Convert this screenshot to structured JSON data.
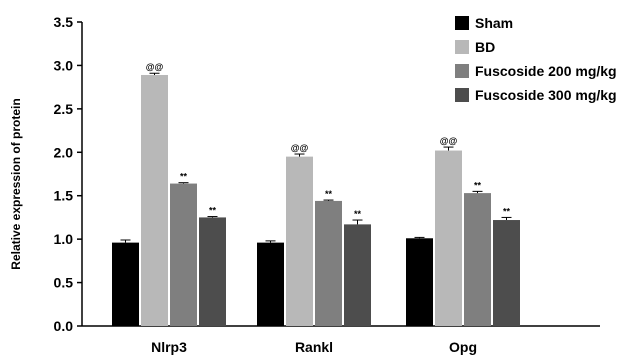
{
  "chart_data": {
    "type": "bar",
    "ylabel": "Relative expression of protein",
    "xlabel": "",
    "ylim": [
      0,
      3.5
    ],
    "yticks": [
      "0.0",
      "0.5",
      "1.0",
      "1.5",
      "2.0",
      "2.5",
      "3.0",
      "3.5"
    ],
    "grid": false,
    "legend_position": "top-right",
    "categories": [
      "Nlrp3",
      "Rankl",
      "Opg"
    ],
    "series": [
      {
        "name": "Sham",
        "color": "#000000",
        "values": [
          0.96,
          0.96,
          1.01
        ],
        "errors": [
          0.03,
          0.02,
          0.01
        ],
        "annotations": [
          "",
          "",
          ""
        ]
      },
      {
        "name": "BD",
        "color": "#b8b8b8",
        "values": [
          2.89,
          1.95,
          2.02
        ],
        "errors": [
          0.02,
          0.03,
          0.04
        ],
        "annotations": [
          "@@",
          "@@",
          "@@"
        ]
      },
      {
        "name": "Fuscoside 200 mg/kg",
        "color": "#7f7f7f",
        "values": [
          1.64,
          1.44,
          1.53
        ],
        "errors": [
          0.01,
          0.01,
          0.02
        ],
        "annotations": [
          "**",
          "**",
          "**"
        ]
      },
      {
        "name": "Fuscoside 300 mg/kg",
        "color": "#4d4d4d",
        "values": [
          1.25,
          1.17,
          1.22
        ],
        "errors": [
          0.01,
          0.05,
          0.03
        ],
        "annotations": [
          "**",
          "**",
          "**"
        ]
      }
    ]
  }
}
